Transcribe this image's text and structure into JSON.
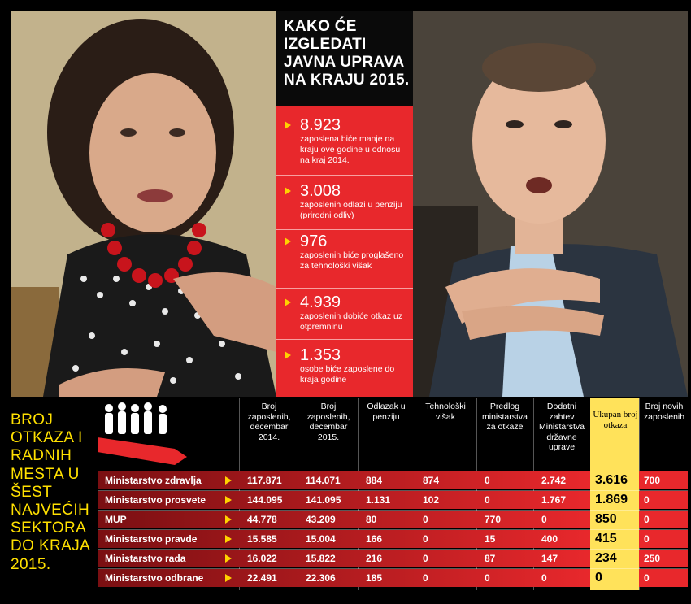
{
  "center": {
    "title": "KAKO ĆE IZGLEDATI JAVNA UPRAVA NA KRAJU 2015.",
    "facts": [
      {
        "number": "8.923",
        "text": "zaposlena biće manje na kraju ove godine u odnosu na kraj 2014."
      },
      {
        "number": "3.008",
        "text": "zaposlenih odlazi u penziju (prirodni odliv)"
      },
      {
        "number": "976",
        "text": "zaposlenih biće proglašeno za tehnološki višak"
      },
      {
        "number": "4.939",
        "text": "zaposlenih dobiće otkaz uz otpremninu"
      },
      {
        "number": "1.353",
        "text": "osobe biće zaposlene do kraja godine"
      }
    ]
  },
  "side_title": "BROJ OTKAZA I RADNIH MESTA U ŠEST NAJVEĆIH SEKTORA DO KRAJA 2015.",
  "table": {
    "headers": [
      "Broj zaposlenih, decembar 2014.",
      "Broj zaposlenih, decembar 2015.",
      "Odlazak u penziju",
      "Tehnološki višak",
      "Predlog ministarstva za otkaze",
      "Dodatni zahtev Ministarstva državne uprave",
      "Ukupan broj otkaza",
      "Broj novih zaposlenih"
    ],
    "rows": [
      {
        "name": "Ministarstvo zdravlja",
        "values": [
          "117.871",
          "114.071",
          "884",
          "874",
          "0",
          "2.742",
          "3.616",
          "700"
        ]
      },
      {
        "name": "Ministarstvo prosvete",
        "values": [
          "144.095",
          "141.095",
          "1.131",
          "102",
          "0",
          "1.767",
          "1.869",
          "0"
        ]
      },
      {
        "name": "MUP",
        "values": [
          "44.778",
          "43.209",
          "80",
          "0",
          "770",
          "0",
          "850",
          "0"
        ]
      },
      {
        "name": "Ministarstvo pravde",
        "values": [
          "15.585",
          "15.004",
          "166",
          "0",
          "15",
          "400",
          "415",
          "0"
        ]
      },
      {
        "name": "Ministarstvo rada",
        "values": [
          "16.022",
          "15.822",
          "216",
          "0",
          "87",
          "147",
          "234",
          "250"
        ]
      },
      {
        "name": "Ministarstvo odbrane",
        "values": [
          "22.491",
          "22.306",
          "185",
          "0",
          "0",
          "0",
          "0",
          "0"
        ]
      }
    ]
  },
  "colors": {
    "accent_red": "#e8282c",
    "accent_yellow": "#ffe000",
    "total_highlight": "#ffe25a",
    "row_dark": "#5a0d0d"
  }
}
